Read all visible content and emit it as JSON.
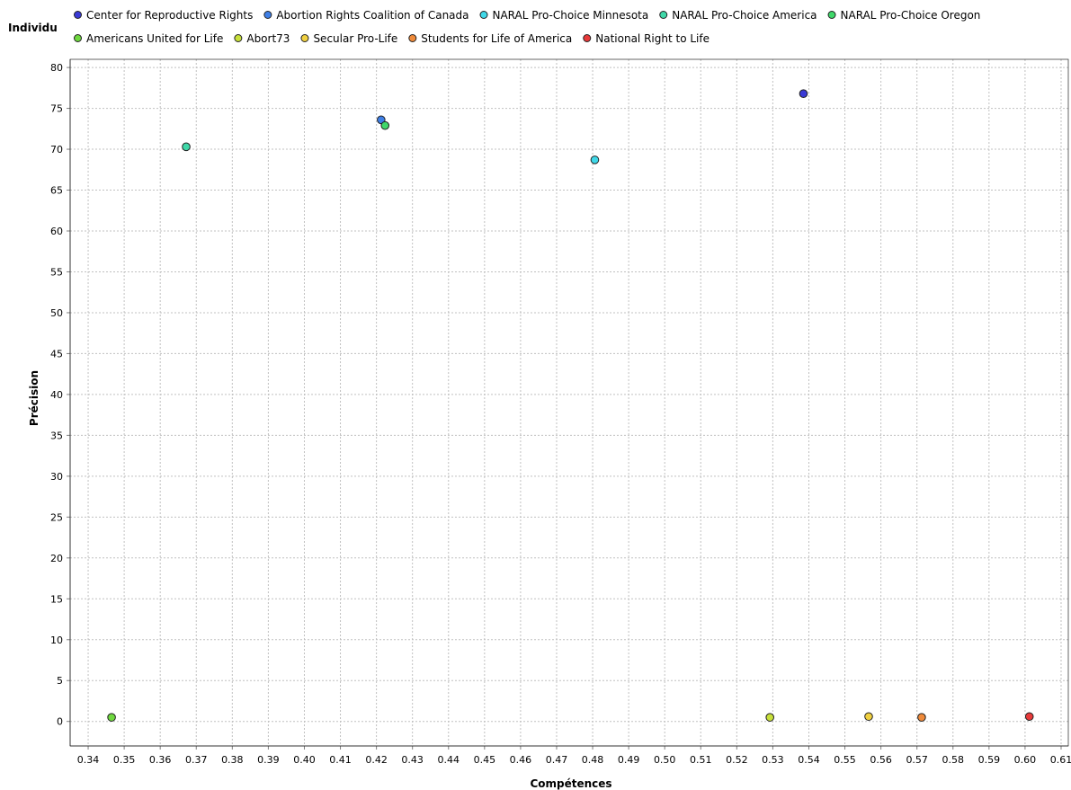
{
  "legend": {
    "title": "Individu"
  },
  "chart_data": {
    "type": "scatter",
    "xlabel": "Compétences",
    "ylabel": "Précision",
    "xlim": [
      0.335,
      0.612
    ],
    "ylim": [
      -3,
      81
    ],
    "x_ticks": [
      "0.34",
      "0.35",
      "0.36",
      "0.37",
      "0.38",
      "0.39",
      "0.40",
      "0.41",
      "0.42",
      "0.43",
      "0.44",
      "0.45",
      "0.46",
      "0.47",
      "0.48",
      "0.49",
      "0.50",
      "0.51",
      "0.52",
      "0.53",
      "0.54",
      "0.55",
      "0.56",
      "0.57",
      "0.58",
      "0.59",
      "0.60",
      "0.61"
    ],
    "y_ticks": [
      "0",
      "5",
      "10",
      "15",
      "20",
      "25",
      "30",
      "35",
      "40",
      "45",
      "50",
      "55",
      "60",
      "65",
      "70",
      "75",
      "80"
    ],
    "grid": true,
    "legend_placement": "top",
    "series": [
      {
        "name": "Center for Reproductive Rights",
        "color": "#3a3ad6",
        "x": 0.5385,
        "y": 76.8
      },
      {
        "name": "Abortion Rights Coalition of Canada",
        "color": "#3f7fe6",
        "x": 0.4213,
        "y": 73.6
      },
      {
        "name": "NARAL Pro-Choice Minnesota",
        "color": "#3fd8e8",
        "x": 0.4806,
        "y": 68.7
      },
      {
        "name": "NARAL Pro-Choice America",
        "color": "#3fd8a8",
        "x": 0.3672,
        "y": 70.3
      },
      {
        "name": "NARAL Pro-Choice Oregon",
        "color": "#3fd86a",
        "x": 0.4224,
        "y": 72.9
      },
      {
        "name": "Americans United for Life",
        "color": "#6fd83f",
        "x": 0.3465,
        "y": 0.5
      },
      {
        "name": "Abort73",
        "color": "#c8e03a",
        "x": 0.5292,
        "y": 0.5
      },
      {
        "name": "Secular Pro-Life",
        "color": "#f0d040",
        "x": 0.5566,
        "y": 0.6
      },
      {
        "name": "Students for Life of America",
        "color": "#ef8a3a",
        "x": 0.5713,
        "y": 0.5
      },
      {
        "name": "National Right to Life",
        "color": "#e83a3a",
        "x": 0.6012,
        "y": 0.6
      }
    ]
  }
}
